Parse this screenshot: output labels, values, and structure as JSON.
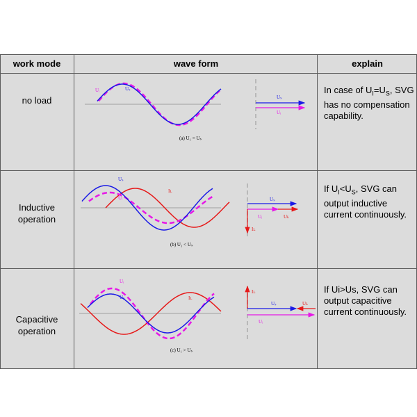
{
  "colors": {
    "background": "#dcdcdc",
    "border": "#5a5a5a",
    "blue": "#1a1ae6",
    "magenta": "#e619e6",
    "red": "#e61919",
    "axis": "#a0a0a0"
  },
  "header": {
    "work_mode": "work mode",
    "wave_form": "wave form",
    "explain": "explain"
  },
  "rows": [
    {
      "mode": "no load",
      "caption": "(a)  U₁ = Uₛ",
      "labels": {
        "ui": "Uᵢ",
        "us": "Uₛ"
      },
      "vector_labels": {
        "us": "Uₛ",
        "ui": "Uᵢ"
      },
      "explain": {
        "pre": "In case of U",
        "sub1": "I",
        "mid": "=U",
        "sub2": "S",
        "post": ", SVG has no compensation capability."
      }
    },
    {
      "mode_line1": "Inductive",
      "mode_line2": "operation",
      "caption": "(b)  U₁ < Uₛ",
      "labels": {
        "us": "Uₛ",
        "ui": "Uᵢ",
        "il": "Iʟ"
      },
      "vector_labels": {
        "us": "Uₛ",
        "ui": "Uᵢ",
        "ul": "Uʟ",
        "il": "Iʟ"
      },
      "explain": {
        "pre": "If U",
        "sub1": "I",
        "mid": "<U",
        "sub2": "S",
        "post": ",  SVG can output inductive current continuously."
      }
    },
    {
      "mode_line1": "Capacitive",
      "mode_line2": "operation",
      "caption": "(c)  U₁ > Uₛ",
      "labels": {
        "ui": "Uᵢ",
        "us": "Uₛ",
        "ic": "Iʟ"
      },
      "vector_labels": {
        "il": "Iʟ",
        "us": "Uₛ",
        "ul": "Uʟ",
        "ui": "Uᵢ"
      },
      "explain": "If Ui>Us,  SVG can output capacitive current continuously."
    }
  ]
}
